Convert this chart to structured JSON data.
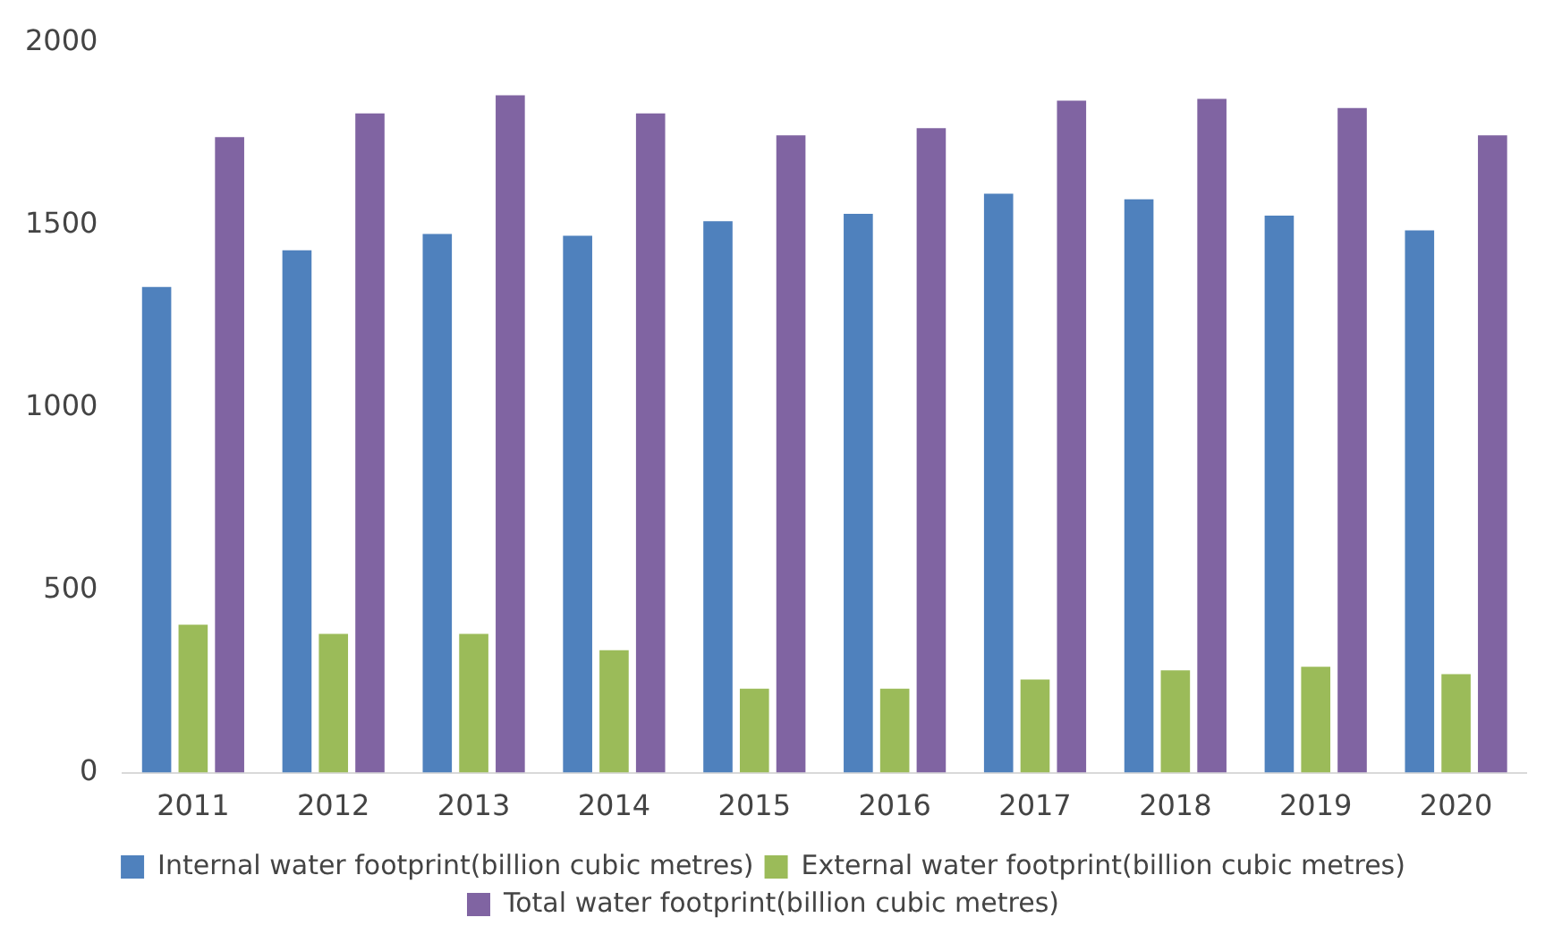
{
  "chart_data": {
    "type": "bar",
    "categories": [
      "2011",
      "2012",
      "2013",
      "2014",
      "2015",
      "2016",
      "2017",
      "2018",
      "2019",
      "2020"
    ],
    "series": [
      {
        "name": "Internal water footprint(billion cubic metres)",
        "color": "#4f81bd",
        "values": [
          1330,
          1430,
          1475,
          1470,
          1510,
          1530,
          1585,
          1570,
          1525,
          1485
        ]
      },
      {
        "name": "External water footprint(billion cubic metres)",
        "color": "#9bbb59",
        "values": [
          405,
          380,
          380,
          335,
          230,
          230,
          255,
          280,
          290,
          270
        ]
      },
      {
        "name": "Total water footprint(billion cubic metres)",
        "color": "#8064a2",
        "values": [
          1740,
          1805,
          1855,
          1805,
          1745,
          1765,
          1840,
          1845,
          1820,
          1745
        ]
      }
    ],
    "ylim": [
      0,
      2000
    ],
    "yticks": [
      0,
      500,
      1000,
      1500,
      2000
    ],
    "grid": false,
    "legend": "bottom"
  }
}
